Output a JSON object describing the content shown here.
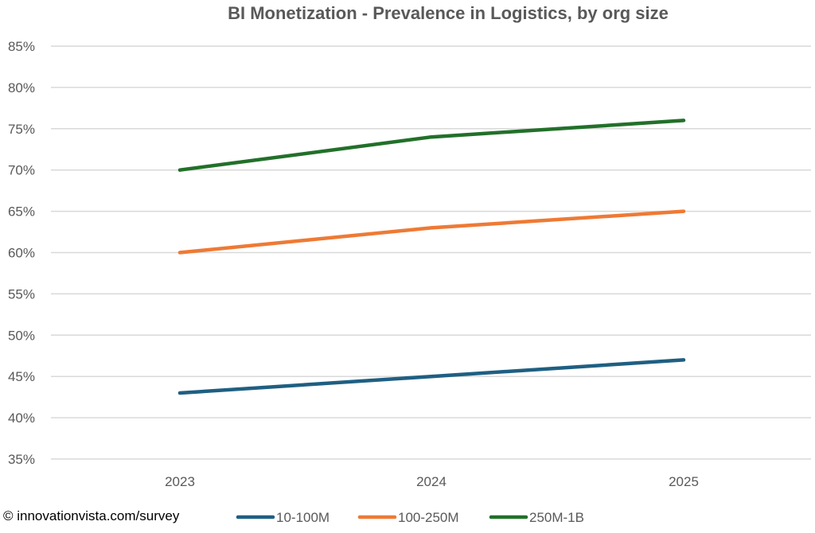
{
  "credit": "© innovationvista.com/survey",
  "chart_data": {
    "type": "line",
    "title": "BI Monetization - Prevalence in Logistics, by org size",
    "xlabel": "",
    "ylabel": "",
    "categories": [
      "2023",
      "2024",
      "2025"
    ],
    "y_tick_labels": [
      "35%",
      "40%",
      "45%",
      "50%",
      "55%",
      "60%",
      "65%",
      "70%",
      "75%",
      "80%",
      "85%"
    ],
    "ylim": [
      35,
      85
    ],
    "y_step": 5,
    "y_unit": "%",
    "grid": "horizontal",
    "legend_position": "bottom",
    "series": [
      {
        "name": "10-100M",
        "color": "#1f5f82",
        "values": [
          43,
          45,
          47
        ]
      },
      {
        "name": "100-250M",
        "color": "#ee7a35",
        "values": [
          60,
          63,
          65
        ]
      },
      {
        "name": "250M-1B",
        "color": "#22702a",
        "values": [
          70,
          74,
          76
        ]
      }
    ]
  }
}
